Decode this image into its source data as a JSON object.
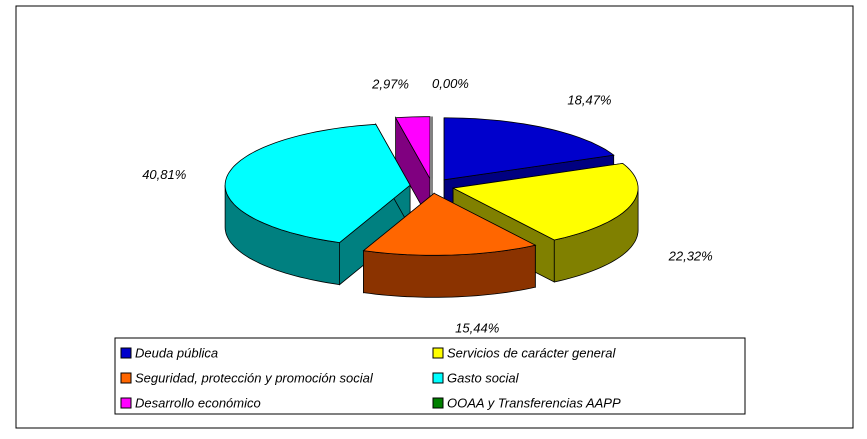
{
  "chart_data": {
    "type": "pie3d",
    "categories": [
      "Deuda pública",
      "Servicios de carácter general",
      "Seguridad, protección y promoción social",
      "Gasto social",
      "Desarrollo económico",
      "OOAA y Transferencias AAPP"
    ],
    "values": [
      18.47,
      22.32,
      15.44,
      40.81,
      2.97,
      0.0
    ],
    "value_labels": [
      "18,47%",
      "22,32%",
      "15,44%",
      "40,81%",
      "2,97%",
      "0,00%"
    ],
    "colors": [
      "#0000cc",
      "#ffff00",
      "#ff6600",
      "#00ffff",
      "#ff00ff",
      "#008000"
    ],
    "side_colors": [
      "#000080",
      "#808000",
      "#8b3300",
      "#008080",
      "#800080",
      "#004000"
    ],
    "legend": "bottom"
  }
}
